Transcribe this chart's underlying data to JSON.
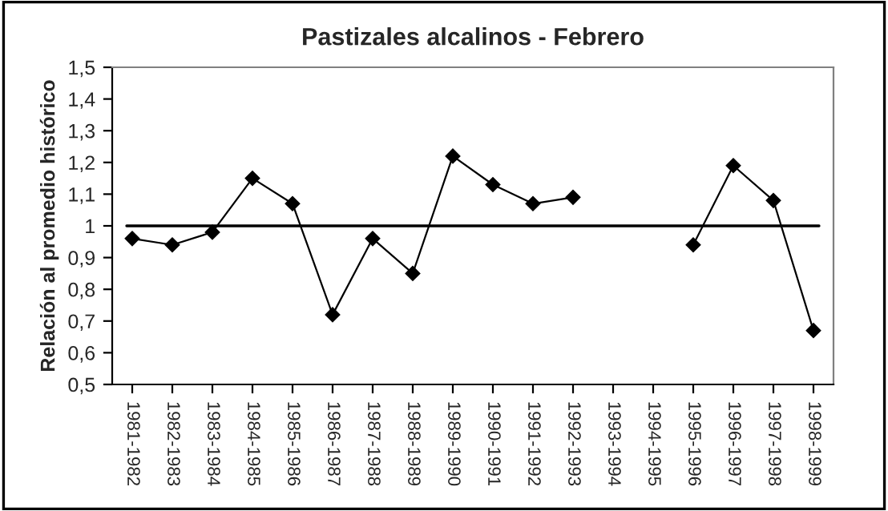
{
  "chart_data": {
    "type": "line",
    "title": "Pastizales alcalinos - Febrero",
    "ylabel": "Relación al promedio histórico",
    "categories": [
      "1981-1982",
      "1982-1983",
      "1983-1984",
      "1984-1985",
      "1985-1986",
      "1986-1987",
      "1987-1988",
      "1988-1989",
      "1989-1990",
      "1990-1991",
      "1991-1992",
      "1992-1993",
      "1993-1994",
      "1994-1995",
      "1995-1996",
      "1996-1997",
      "1997-1998",
      "1998-1999"
    ],
    "series": [
      {
        "color": "#000000",
        "values": [
          0.96,
          0.94,
          0.98,
          1.15,
          1.07,
          0.72,
          0.96,
          0.85,
          1.22,
          1.13,
          1.07,
          1.09,
          null,
          null,
          0.94,
          1.19,
          1.08,
          0.67
        ]
      }
    ],
    "ylim": [
      0.5,
      1.5
    ],
    "yticks": [
      {
        "value": 0.5,
        "label": "0,5"
      },
      {
        "value": 0.6,
        "label": "0,6"
      },
      {
        "value": 0.7,
        "label": "0,7"
      },
      {
        "value": 0.8,
        "label": "0,8"
      },
      {
        "value": 0.9,
        "label": "0,9"
      },
      {
        "value": 1,
        "label": "1"
      },
      {
        "value": 1.1,
        "label": "1,1"
      },
      {
        "value": 1.2,
        "label": "1,2"
      },
      {
        "value": 1.3,
        "label": "1,3"
      },
      {
        "value": 1.4,
        "label": "1,4"
      },
      {
        "value": 1.5,
        "label": "1,5"
      }
    ],
    "ref_lines": [
      {
        "axis": "y",
        "value": 1,
        "color": "#000000"
      }
    ],
    "marker": "diamond",
    "grid": false,
    "legend": false
  }
}
